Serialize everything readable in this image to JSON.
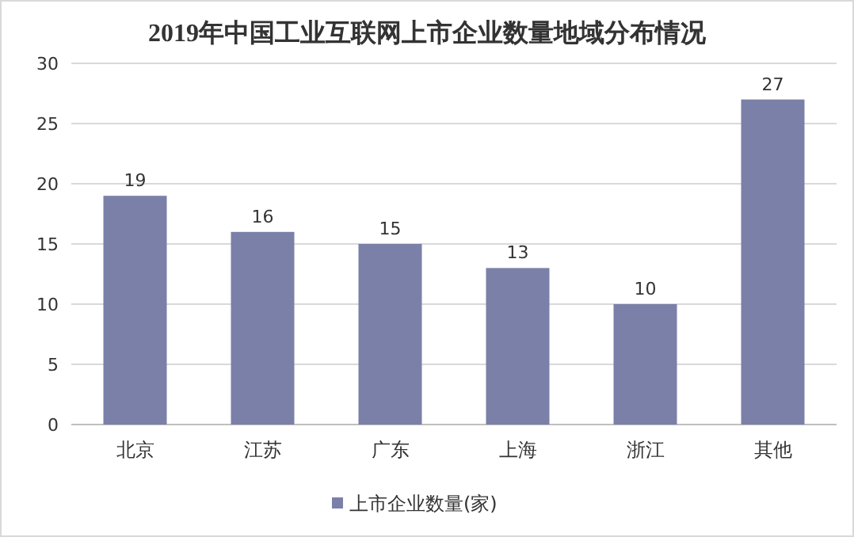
{
  "chart_data": {
    "type": "bar",
    "title": "2019年中国工业互联网上市企业数量地域分布情况",
    "categories": [
      "北京",
      "江苏",
      "广东",
      "上海",
      "浙江",
      "其他"
    ],
    "series": [
      {
        "name": "上市企业数量(家)",
        "color": "#7a80a8",
        "values": [
          19,
          16,
          15,
          13,
          10,
          27
        ]
      }
    ],
    "ylim": [
      0,
      30
    ],
    "yticks": [
      0,
      5,
      10,
      15,
      20,
      25,
      30
    ],
    "grid": "y",
    "legend": "bottom",
    "data_labels": true
  }
}
